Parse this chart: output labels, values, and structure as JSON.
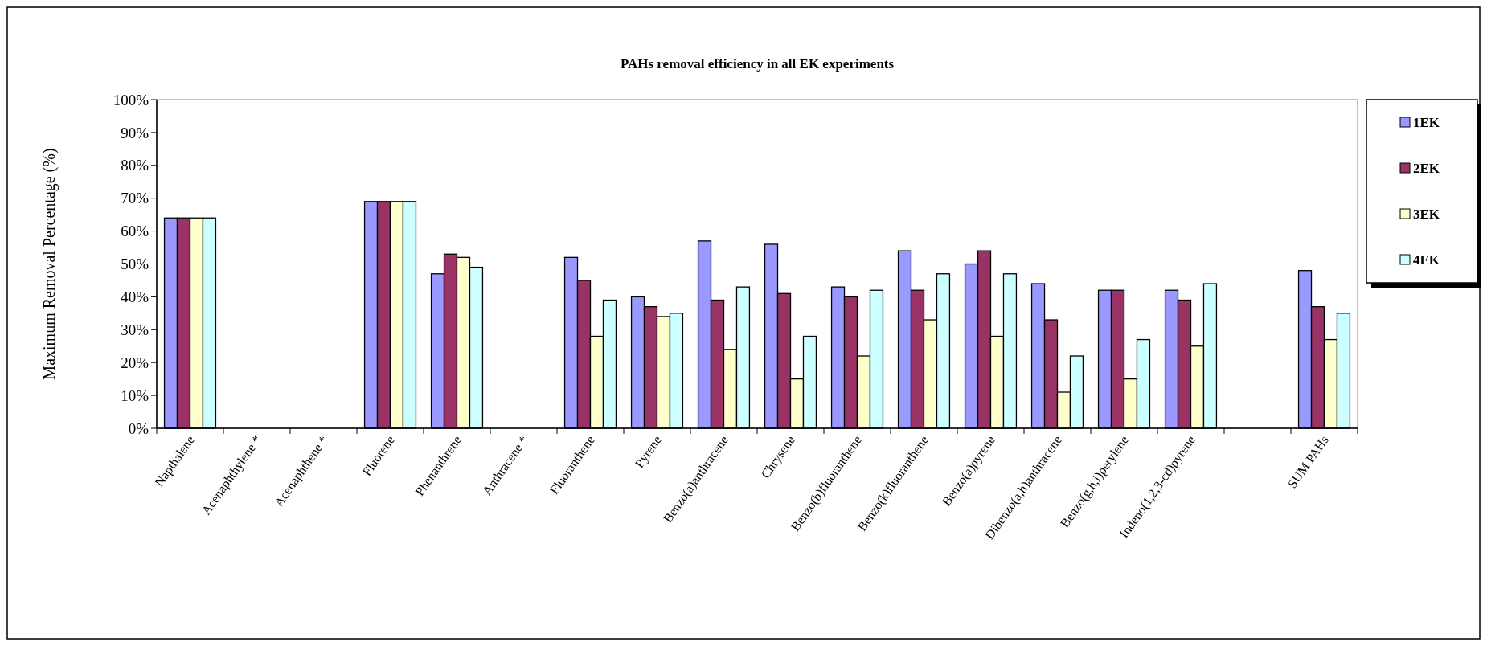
{
  "chart_data": {
    "type": "bar",
    "title": "PAHs removal efficiency in all EK experiments",
    "ylabel": "Maximum  Removal Percentage (%)",
    "categories": [
      "Napthalene",
      "Acenaphthylene *",
      "Acenaphthene *",
      "Fluorene",
      "Phenanthrene",
      "Anthracene *",
      "Fluoranthene",
      "Pyrene",
      "Benzo(a)anthracene",
      "Chrysene",
      "Benzo(b)fluoranthene",
      "Benzo(k)fluoranthene",
      "Benzo(a)pyrene",
      "Dibenzo(a,h)anthracene",
      "Benzo(g,h,i)perylene",
      "Indeno(1,2,3-cd)pyrene",
      null,
      "SUM PAHs"
    ],
    "series": [
      {
        "name": "1EK",
        "color": "#9999ff",
        "values": [
          64,
          null,
          null,
          69,
          47,
          null,
          52,
          40,
          57,
          56,
          43,
          54,
          50,
          44,
          42,
          42,
          null,
          48
        ]
      },
      {
        "name": "2EK",
        "color": "#993366",
        "values": [
          64,
          null,
          null,
          69,
          53,
          null,
          45,
          37,
          39,
          41,
          40,
          42,
          54,
          33,
          42,
          39,
          null,
          37
        ]
      },
      {
        "name": "3EK",
        "color": "#ffffcc",
        "values": [
          64,
          null,
          null,
          69,
          52,
          null,
          28,
          34,
          24,
          15,
          22,
          33,
          28,
          11,
          15,
          25,
          null,
          27
        ]
      },
      {
        "name": "4EK",
        "color": "#ccffff",
        "values": [
          64,
          null,
          null,
          69,
          49,
          null,
          39,
          35,
          43,
          28,
          42,
          47,
          47,
          22,
          27,
          44,
          null,
          35
        ]
      }
    ],
    "ylim": [
      0,
      100
    ],
    "yticks": [
      {
        "value": 0,
        "label": "0%"
      },
      {
        "value": 10,
        "label": "10%"
      },
      {
        "value": 20,
        "label": "20%"
      },
      {
        "value": 30,
        "label": "30%"
      },
      {
        "value": 40,
        "label": "40%"
      },
      {
        "value": 50,
        "label": "50%"
      },
      {
        "value": 60,
        "label": "60%"
      },
      {
        "value": 70,
        "label": "70%"
      },
      {
        "value": 80,
        "label": "80%"
      },
      {
        "value": 90,
        "label": "90%"
      },
      {
        "value": 100,
        "label": "100%"
      }
    ],
    "grid": false,
    "legend": "right"
  }
}
